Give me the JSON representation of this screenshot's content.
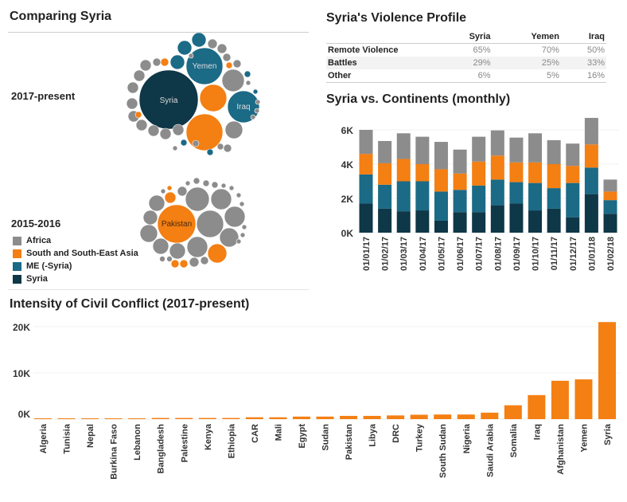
{
  "left": {
    "title": "Comparing Syria",
    "period1": "2017-present",
    "period2": "2015-2016",
    "bubble_labels": {
      "syria": "Syria",
      "yemen": "Yemen",
      "iraq": "Iraq",
      "pakistan": "Pakistan"
    },
    "legend": [
      {
        "label": "Africa",
        "color": "#8c8c8c"
      },
      {
        "label": "South and South-East Asia",
        "color": "#f47f12"
      },
      {
        "label": "ME (-Syria)",
        "color": "#1b6a86"
      },
      {
        "label": "Syria",
        "color": "#0e3747"
      }
    ]
  },
  "profile": {
    "title": "Syria's Violence Profile",
    "columns": [
      "",
      "Syria",
      "Yemen",
      "Iraq"
    ],
    "rows": [
      [
        "Remote Violence",
        "65%",
        "70%",
        "50%"
      ],
      [
        "Battles",
        "29%",
        "25%",
        "33%"
      ],
      [
        "Other",
        "6%",
        "5%",
        "16%"
      ]
    ]
  },
  "chart_data": [
    {
      "type": "bar",
      "stacked": true,
      "title": "Syria vs. Continents (monthly)",
      "categories": [
        "01/01/17",
        "01/02/17",
        "01/03/17",
        "01/04/17",
        "01/05/17",
        "01/06/17",
        "01/07/17",
        "01/08/17",
        "01/09/17",
        "01/10/17",
        "01/11/17",
        "01/12/17",
        "01/01/18",
        "01/02/18"
      ],
      "series": [
        {
          "name": "Syria",
          "color": "#0e3747",
          "values": [
            1700,
            1400,
            1250,
            1300,
            700,
            1200,
            1200,
            1600,
            1700,
            1300,
            1400,
            900,
            2250,
            1100
          ]
        },
        {
          "name": "ME (-Syria)",
          "color": "#1b6a86",
          "values": [
            1700,
            1400,
            1750,
            1700,
            1700,
            1300,
            1550,
            1500,
            1250,
            1600,
            1200,
            2000,
            1550,
            800
          ]
        },
        {
          "name": "South and South-East Asia",
          "color": "#f47f12",
          "values": [
            1200,
            1250,
            1300,
            1000,
            1300,
            950,
            1400,
            1400,
            1150,
            1200,
            1400,
            1000,
            1350,
            500
          ]
        },
        {
          "name": "Africa",
          "color": "#8c8c8c",
          "values": [
            1400,
            1300,
            1500,
            1600,
            1600,
            1400,
            1450,
            1470,
            1450,
            1700,
            1400,
            1300,
            1550,
            700
          ]
        }
      ],
      "yticks": [
        "0K",
        "2K",
        "4K",
        "6K"
      ],
      "ytick_values": [
        0,
        2000,
        4000,
        6000
      ],
      "ylim": [
        0,
        6900
      ]
    },
    {
      "type": "bar",
      "title": "Intensity of Civil Conflict (2017-present)",
      "categories": [
        "Algeria",
        "Tunisia",
        "Nepal",
        "Burkina Faso",
        "Lebanon",
        "Bangladesh",
        "Palestine",
        "Kenya",
        "Ethiopia",
        "CAR",
        "Mali",
        "Egypt",
        "Sudan",
        "Pakistan",
        "Libya",
        "DRC",
        "Turkey",
        "South Sudan",
        "Nigeria",
        "Saudi Arabia",
        "Somalia",
        "Iraq",
        "Afghanistan",
        "Yemen",
        "Syria"
      ],
      "values": [
        80,
        80,
        90,
        90,
        100,
        250,
        250,
        250,
        250,
        400,
        400,
        550,
        550,
        700,
        700,
        800,
        950,
        1000,
        1000,
        1400,
        3000,
        5200,
        8300,
        8600,
        21000
      ],
      "color": "#f47f12",
      "yticks": [
        "0K",
        "10K",
        "20K"
      ],
      "ytick_values": [
        0,
        10000,
        20000
      ],
      "ylim": [
        0,
        21000
      ]
    }
  ]
}
